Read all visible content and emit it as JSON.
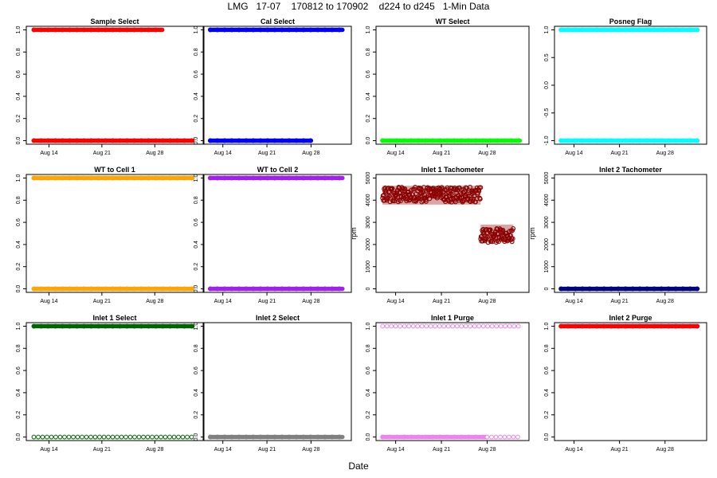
{
  "figure": {
    "title": "LMG   17-07    170812 to 170902    d224 to d245   1-Min Data",
    "xlabel": "Date"
  },
  "chart_data": [
    {
      "type": "scatter",
      "title": "Sample Select",
      "ylabel": "",
      "xlabel": "",
      "ylim": [
        0,
        1
      ],
      "yticks": [
        "0.0",
        "0.2",
        "0.4",
        "0.6",
        "0.8",
        "1.0"
      ],
      "xticks": [
        "Aug 14",
        "Aug 21",
        "Aug 28"
      ],
      "color": "#ff0000",
      "marker": "circle",
      "segments": [
        {
          "x": [
            "Aug 12",
            "Aug 29"
          ],
          "y": 1
        },
        {
          "x": [
            "Aug 12",
            "Sep 2"
          ],
          "y": 0
        }
      ]
    },
    {
      "type": "scatter",
      "title": "Cal Select",
      "ylabel": "",
      "xlabel": "",
      "ylim": [
        0,
        1
      ],
      "yticks": [
        "0.0",
        "0.2",
        "0.4",
        "0.6",
        "0.8",
        "1.0"
      ],
      "xticks": [
        "Aug 14",
        "Aug 21",
        "Aug 28"
      ],
      "color": "#0000ff",
      "marker": "circle",
      "segments": [
        {
          "x": [
            "Aug 12",
            "Sep 2"
          ],
          "y": 1
        },
        {
          "x": [
            "Aug 12",
            "Aug 28"
          ],
          "y": 0
        }
      ]
    },
    {
      "type": "scatter",
      "title": "WT Select",
      "ylabel": "",
      "xlabel": "",
      "ylim": [
        0,
        1
      ],
      "yticks": [
        "0.0",
        "0.2",
        "0.4",
        "0.6",
        "0.8",
        "1.0"
      ],
      "xticks": [
        "Aug 14",
        "Aug 21",
        "Aug 28"
      ],
      "color": "#00ff00",
      "marker": "circle",
      "segments": [
        {
          "x": [
            "Aug 12",
            "Sep 2"
          ],
          "y": 0
        }
      ]
    },
    {
      "type": "scatter",
      "title": "Posneg Flag",
      "ylabel": "",
      "xlabel": "",
      "ylim": [
        -1,
        1
      ],
      "yticks": [
        "-1.0",
        "-0.5",
        "0.0",
        "0.5",
        "1.0"
      ],
      "xticks": [
        "Aug 14",
        "Aug 21",
        "Aug 28"
      ],
      "color": "#00ffff",
      "marker": "circle",
      "segments": [
        {
          "x": [
            "Aug 12",
            "Sep 2"
          ],
          "y": 1
        },
        {
          "x": [
            "Aug 12",
            "Sep 2"
          ],
          "y": -1
        }
      ]
    },
    {
      "type": "scatter",
      "title": "WT to Cell 1",
      "ylabel": "",
      "xlabel": "",
      "ylim": [
        0,
        1
      ],
      "yticks": [
        "0.0",
        "0.2",
        "0.4",
        "0.6",
        "0.8",
        "1.0"
      ],
      "xticks": [
        "Aug 14",
        "Aug 21",
        "Aug 28"
      ],
      "color": "#ffa500",
      "marker": "circle",
      "segments": [
        {
          "x": [
            "Aug 12",
            "Sep 2"
          ],
          "y": 1
        },
        {
          "x": [
            "Aug 12",
            "Sep 2"
          ],
          "y": 0
        }
      ]
    },
    {
      "type": "scatter",
      "title": "WT to Cell 2",
      "ylabel": "",
      "xlabel": "",
      "ylim": [
        0,
        1
      ],
      "yticks": [
        "0.0",
        "0.2",
        "0.4",
        "0.6",
        "0.8",
        "1.0"
      ],
      "xticks": [
        "Aug 14",
        "Aug 21",
        "Aug 28"
      ],
      "color": "#a020f0",
      "marker": "circle",
      "segments": [
        {
          "x": [
            "Aug 12",
            "Sep 2"
          ],
          "y": 1
        },
        {
          "x": [
            "Aug 12",
            "Sep 2"
          ],
          "y": 0
        }
      ]
    },
    {
      "type": "scatter",
      "title": "Inlet 1 Tachometer",
      "ylabel": "rpm",
      "xlabel": "",
      "ylim": [
        0,
        5000
      ],
      "yticks": [
        "0",
        "1000",
        "2000",
        "3000",
        "4000",
        "5000"
      ],
      "xticks": [
        "Aug 14",
        "Aug 21",
        "Aug 28"
      ],
      "color": "#8b0000",
      "marker": "circle",
      "bands": [
        {
          "x": [
            "Aug 12",
            "Aug 27"
          ],
          "y": [
            3800,
            4650
          ],
          "center": 4250
        },
        {
          "x": [
            "Aug 27",
            "Sep 1"
          ],
          "y": [
            2100,
            2900
          ],
          "center": 2400
        }
      ]
    },
    {
      "type": "scatter",
      "title": "Inlet 2 Tachometer",
      "ylabel": "rpm",
      "xlabel": "",
      "ylim": [
        0,
        5000
      ],
      "yticks": [
        "0",
        "1000",
        "2000",
        "3000",
        "4000",
        "5000"
      ],
      "xticks": [
        "Aug 14",
        "Aug 21",
        "Aug 28"
      ],
      "color": "#000080",
      "marker": "circle",
      "segments": [
        {
          "x": [
            "Aug 12",
            "Sep 2"
          ],
          "y": 0
        }
      ]
    },
    {
      "type": "scatter",
      "title": "Inlet 1 Select",
      "ylabel": "",
      "xlabel": "",
      "ylim": [
        0,
        1
      ],
      "yticks": [
        "0.0",
        "0.2",
        "0.4",
        "0.6",
        "0.8",
        "1.0"
      ],
      "xticks": [
        "Aug 14",
        "Aug 21",
        "Aug 28"
      ],
      "color": "#006400",
      "marker": "circle",
      "segments": [
        {
          "x": [
            "Aug 12",
            "Sep 2"
          ],
          "y": 1
        }
      ],
      "sparse": [
        {
          "x": [
            "Aug 12",
            "Sep 2"
          ],
          "y": 0
        }
      ]
    },
    {
      "type": "scatter",
      "title": "Inlet 2 Select",
      "ylabel": "",
      "xlabel": "",
      "ylim": [
        0,
        1
      ],
      "yticks": [
        "0.0",
        "0.2",
        "0.4",
        "0.6",
        "0.8",
        "1.0"
      ],
      "xticks": [
        "Aug 14",
        "Aug 21",
        "Aug 28"
      ],
      "color": "#808080",
      "marker": "circle",
      "segments": [
        {
          "x": [
            "Aug 12",
            "Sep 2"
          ],
          "y": 0
        }
      ]
    },
    {
      "type": "scatter",
      "title": "Inlet 1 Purge",
      "ylabel": "",
      "xlabel": "",
      "ylim": [
        0,
        1
      ],
      "yticks": [
        "0.0",
        "0.2",
        "0.4",
        "0.6",
        "0.8",
        "1.0"
      ],
      "xticks": [
        "Aug 14",
        "Aug 21",
        "Aug 28"
      ],
      "color": "#ee82ee",
      "marker": "circle",
      "segments": [
        {
          "x": [
            "Aug 12",
            "Aug 28"
          ],
          "y": 0
        }
      ],
      "sparse": [
        {
          "x": [
            "Aug 12",
            "Sep 2"
          ],
          "y": 1
        },
        {
          "x": [
            "Aug 28",
            "Sep 2"
          ],
          "y": 0
        }
      ]
    },
    {
      "type": "scatter",
      "title": "Inlet 2 Purge",
      "ylabel": "",
      "xlabel": "",
      "ylim": [
        0,
        1
      ],
      "yticks": [
        "0.0",
        "0.2",
        "0.4",
        "0.6",
        "0.8",
        "1.0"
      ],
      "xticks": [
        "Aug 14",
        "Aug 21",
        "Aug 28"
      ],
      "color": "#ff0000",
      "marker": "circle",
      "segments": [
        {
          "x": [
            "Aug 12",
            "Sep 2"
          ],
          "y": 1
        }
      ]
    }
  ]
}
